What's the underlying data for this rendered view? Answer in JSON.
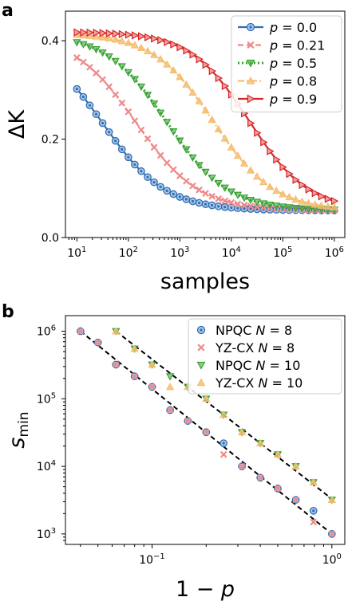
{
  "panels": {
    "a": "a",
    "b": "b"
  },
  "chart_data": [
    {
      "panel": "a",
      "type": "line",
      "x_scale": "log",
      "xlim": [
        6,
        1600000
      ],
      "ylim": [
        0,
        0.46
      ],
      "xlabel": "samples",
      "ylabel": "ΔK",
      "yticks": [
        "0.0",
        "0.2",
        "0.4"
      ],
      "yticks_values": [
        0.0,
        0.2,
        0.4
      ],
      "xticks": [
        "10",
        "10",
        "10",
        "10",
        "10",
        "10"
      ],
      "xticks_exp": [
        "1",
        "2",
        "3",
        "4",
        "5",
        "6"
      ],
      "xticks_values": [
        10,
        100,
        1000,
        10000,
        100000,
        1000000
      ],
      "legend_position": "top-right",
      "series": [
        {
          "name": "p = 0.0",
          "label_p": "p",
          "label_val": " = 0.0",
          "color": "#2f6eb3",
          "linestyle": "solid",
          "marker": "circle-dot",
          "x0": 1.5,
          "k": 1.65,
          "top": 0.41,
          "bottom": 0.055
        },
        {
          "name": "p = 0.21",
          "label_p": "p",
          "label_val": " = 0.21",
          "color": "#ef8a8a",
          "linestyle": "dashed",
          "marker": "x",
          "x0": 2.15,
          "k": 1.65,
          "top": 0.412,
          "bottom": 0.055
        },
        {
          "name": "p = 0.5",
          "label_p": "p",
          "label_val": " = 0.5",
          "color": "#32a02c",
          "linestyle": "dotted",
          "marker": "triangle-down",
          "x0": 2.75,
          "k": 1.7,
          "top": 0.414,
          "bottom": 0.055
        },
        {
          "name": "p = 0.8",
          "label_p": "p",
          "label_val": " = 0.8",
          "color": "#f5bd6e",
          "linestyle": "dashdot",
          "marker": "triangle-up",
          "x0": 3.65,
          "k": 1.7,
          "top": 0.416,
          "bottom": 0.055
        },
        {
          "name": "p = 0.9",
          "label_p": "p",
          "label_val": " = 0.9",
          "color": "#d62728",
          "linestyle": "solid",
          "marker": "triangle-right",
          "x0": 4.35,
          "k": 1.75,
          "top": 0.418,
          "bottom": 0.055
        }
      ]
    },
    {
      "panel": "b",
      "type": "scatter",
      "x_scale": "log",
      "y_scale": "log",
      "xlim": [
        0.033,
        1.18
      ],
      "ylim": [
        700,
        1700000
      ],
      "xlabel": "1 − p",
      "ylabel": "s_min",
      "xticks": [
        "10",
        "10"
      ],
      "xticks_exp": [
        "−1",
        "0"
      ],
      "xticks_values": [
        0.1,
        1
      ],
      "yticks": [
        "10",
        "10",
        "10",
        "10"
      ],
      "yticks_exp": [
        "3",
        "4",
        "5",
        "6"
      ],
      "yticks_values": [
        1000,
        10000,
        100000,
        1000000
      ],
      "legend_position": "top-right",
      "series": [
        {
          "name": "NPQC N = 8",
          "label_a": "NPQC ",
          "label_b": "N",
          "label_c": " = 8",
          "color": "#2f6eb3",
          "marker": "circle-dot",
          "x": [
            0.04,
            0.05,
            0.063,
            0.08,
            0.1,
            0.126,
            0.158,
            0.2,
            0.25,
            0.316,
            0.4,
            0.5,
            0.63,
            0.79,
            1.0
          ],
          "y": [
            1000000,
            680000,
            320000,
            215000,
            150000,
            68000,
            47000,
            32000,
            22000,
            10000,
            6800,
            4700,
            3200,
            2200,
            1000
          ]
        },
        {
          "name": "YZ-CX N = 8",
          "label_a": "YZ-CX ",
          "label_b": "N",
          "label_c": " = 8",
          "color": "#ef8a8a",
          "marker": "x",
          "x": [
            0.04,
            0.05,
            0.063,
            0.08,
            0.1,
            0.126,
            0.158,
            0.2,
            0.25,
            0.316,
            0.4,
            0.5,
            0.63,
            0.79,
            1.0
          ],
          "y": [
            1000000,
            680000,
            320000,
            215000,
            150000,
            68000,
            47000,
            32000,
            15000,
            10000,
            6800,
            4700,
            3200,
            1500,
            1000
          ]
        },
        {
          "name": "NPQC N = 10",
          "label_a": "NPQC ",
          "label_b": "N",
          "label_c": " = 10",
          "color": "#32a02c",
          "marker": "triangle-down",
          "x": [
            0.063,
            0.08,
            0.1,
            0.126,
            0.158,
            0.2,
            0.25,
            0.316,
            0.4,
            0.5,
            0.63,
            0.79,
            1.0
          ],
          "y": [
            1000000,
            550000,
            320000,
            215000,
            150000,
            100000,
            58000,
            32000,
            22000,
            15000,
            10000,
            5800,
            3200
          ]
        },
        {
          "name": "YZ-CX N = 10",
          "label_a": "YZ-CX ",
          "label_b": "N",
          "label_c": " = 10",
          "color": "#f5bd6e",
          "marker": "triangle-up",
          "x": [
            0.063,
            0.08,
            0.1,
            0.126,
            0.158,
            0.2,
            0.25,
            0.316,
            0.4,
            0.5,
            0.63,
            0.79,
            1.0
          ],
          "y": [
            1000000,
            550000,
            320000,
            150000,
            150000,
            100000,
            58000,
            32000,
            22000,
            15000,
            10000,
            5800,
            3200
          ]
        }
      ],
      "fits": [
        {
          "x": [
            0.04,
            1.0
          ],
          "y": [
            1000000,
            1000
          ]
        },
        {
          "x": [
            0.063,
            1.0
          ],
          "y": [
            1000000,
            3300
          ]
        }
      ]
    }
  ]
}
